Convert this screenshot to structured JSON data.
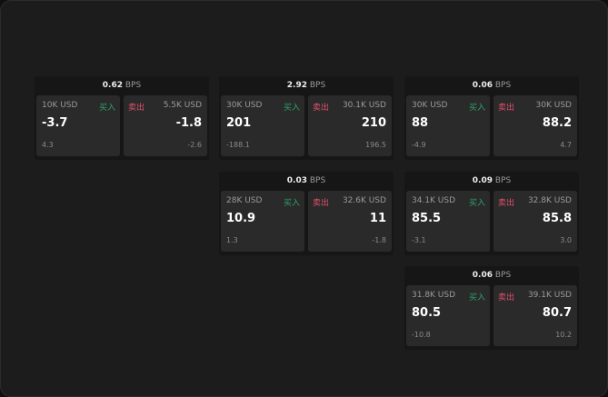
{
  "colors": {
    "buy": "#2fa36b",
    "sell": "#e0506a"
  },
  "buy_label": "买入",
  "sell_label": "卖出",
  "unit": "BPS",
  "widgets": [
    {
      "spread": "0.62",
      "buy": {
        "size": "10K USD",
        "price": "-3.7",
        "change": "4.3"
      },
      "sell": {
        "size": "5.5K USD",
        "price": "-1.8",
        "change": "-2.6"
      }
    },
    {
      "spread": "2.92",
      "buy": {
        "size": "30K USD",
        "price": "201",
        "change": "-188.1"
      },
      "sell": {
        "size": "30.1K USD",
        "price": "210",
        "change": "196.5"
      }
    },
    {
      "spread": "0.06",
      "buy": {
        "size": "30K USD",
        "price": "88",
        "change": "-4.9"
      },
      "sell": {
        "size": "30K USD",
        "price": "88.2",
        "change": "4.7"
      }
    },
    {
      "spread": "0.03",
      "buy": {
        "size": "28K USD",
        "price": "10.9",
        "change": "1.3"
      },
      "sell": {
        "size": "32.6K USD",
        "price": "11",
        "change": "-1.8"
      }
    },
    {
      "spread": "0.09",
      "buy": {
        "size": "34.1K USD",
        "price": "85.5",
        "change": "-3.1"
      },
      "sell": {
        "size": "32.8K USD",
        "price": "85.8",
        "change": "3.0"
      }
    },
    {
      "spread": "0.06",
      "buy": {
        "size": "31.8K USD",
        "price": "80.5",
        "change": "-10.8"
      },
      "sell": {
        "size": "39.1K USD",
        "price": "80.7",
        "change": "10.2"
      }
    }
  ]
}
